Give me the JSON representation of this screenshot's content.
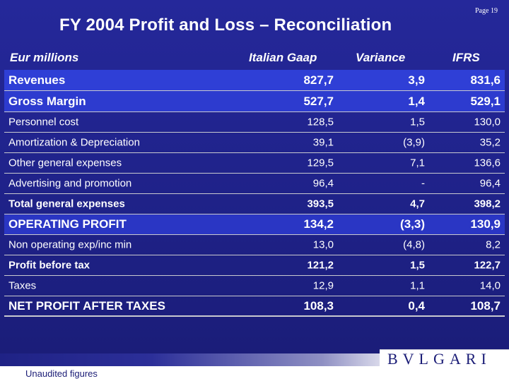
{
  "page": {
    "number": "Page 19"
  },
  "title": "FY 2004 Profit and Loss – Reconciliation",
  "headers": {
    "unit": "Eur millions",
    "col1": "Italian Gaap",
    "col2": "Variance",
    "col3": "IFRS"
  },
  "rows": [
    {
      "label": "Revenues",
      "italian_gaap": "827,7",
      "variance": "3,9",
      "ifrs": "831,6"
    },
    {
      "label": "Gross Margin",
      "italian_gaap": "527,7",
      "variance": "1,4",
      "ifrs": "529,1"
    },
    {
      "label": "Personnel cost",
      "italian_gaap": "128,5",
      "variance": "1,5",
      "ifrs": "130,0"
    },
    {
      "label": "Amortization & Depreciation",
      "italian_gaap": "39,1",
      "variance": "(3,9)",
      "ifrs": "35,2"
    },
    {
      "label": "Other general expenses",
      "italian_gaap": "129,5",
      "variance": "7,1",
      "ifrs": "136,6"
    },
    {
      "label": "Advertising and promotion",
      "italian_gaap": "96,4",
      "variance": "-",
      "ifrs": "96,4"
    },
    {
      "label": "Total general expenses",
      "italian_gaap": "393,5",
      "variance": "4,7",
      "ifrs": "398,2"
    },
    {
      "label": "OPERATING PROFIT",
      "italian_gaap": "134,2",
      "variance": "(3,3)",
      "ifrs": "130,9"
    },
    {
      "label": "Non operating exp/inc min",
      "italian_gaap": "13,0",
      "variance": "(4,8)",
      "ifrs": "8,2"
    },
    {
      "label": "Profit before tax",
      "italian_gaap": "121,2",
      "variance": "1,5",
      "ifrs": "122,7"
    },
    {
      "label": "Taxes",
      "italian_gaap": "12,9",
      "variance": "1,1",
      "ifrs": "14,0"
    },
    {
      "label": "NET PROFIT AFTER TAXES",
      "italian_gaap": "108,3",
      "variance": "0,4",
      "ifrs": "108,7"
    }
  ],
  "footer": {
    "note": "Unaudited figures",
    "logo": "BVLGARI"
  },
  "colors": {
    "background": "#1e2186",
    "highlight_row": "#2f3fd6",
    "row_divider": "#c9c9cf",
    "text": "#ffffff"
  }
}
